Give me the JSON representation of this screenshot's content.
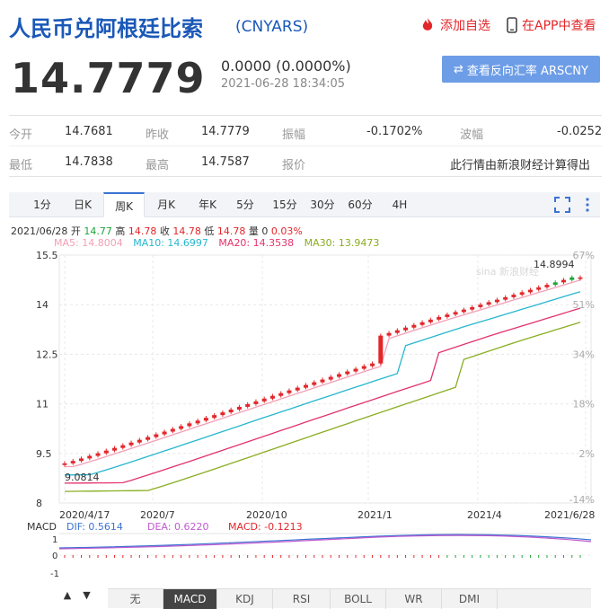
{
  "header": {
    "title": "人民币兑阿根廷比索",
    "code": "(CNYARS)",
    "add_watch": "添加自选",
    "app_view": "在APP中查看"
  },
  "quote": {
    "price": "14.7779",
    "change": "0.0000 (0.0000%)",
    "time": "2021-06-28 18:34:05",
    "reverse_btn": "查看反向汇率 ARSCNY"
  },
  "stats": {
    "row1": [
      [
        "今开",
        "14.7681"
      ],
      [
        "昨收",
        "14.7779"
      ],
      [
        "振幅",
        "-0.1702%"
      ],
      [
        "波幅",
        "-0.0252"
      ]
    ],
    "row2": [
      [
        "最低",
        "14.7838"
      ],
      [
        "最高",
        "14.7587"
      ],
      [
        "报价",
        "此行情由新浪财经计算得出"
      ]
    ]
  },
  "tabs": [
    "1分",
    "日K",
    "周K",
    "月K",
    "年K",
    "5分",
    "15分",
    "30分",
    "60分",
    "4H"
  ],
  "active_tab": "周K",
  "ticker": {
    "date": "2021/06/28",
    "open_l": "开",
    "open": "14.77",
    "high_l": "高",
    "high": "14.78",
    "close_l": "收",
    "close": "14.78",
    "low_l": "低",
    "low": "14.78",
    "vol_l": "量",
    "vol": "0",
    "pct": "0.03%"
  },
  "ma": [
    {
      "label": "MA5: 14.8004",
      "color": "#f2a0b5"
    },
    {
      "label": "MA10: 14.6997",
      "color": "#27b6cf"
    },
    {
      "label": "MA20: 14.3538",
      "color": "#e2336b"
    },
    {
      "label": "MA30: 13.9473",
      "color": "#8aad22"
    }
  ],
  "chart": {
    "y_ticks": [
      "15.5",
      "14",
      "12.5",
      "11",
      "9.5",
      "8"
    ],
    "pct_ticks": [
      "67%",
      "51%",
      "34%",
      "18%",
      "2%",
      "-14%"
    ],
    "x_ticks": [
      "2020/4/17",
      "2020/7",
      "2020/10",
      "2021/1",
      "2021/4",
      "2021/6/28"
    ],
    "max_label": "14.8994",
    "min_label": "9.0814",
    "watermark": "sina 新浪财经",
    "colors": {
      "up": "#e3262a",
      "down": "#1aa53a"
    }
  },
  "macd": {
    "title": "MACD",
    "dif": "DIF: 0.5614",
    "dea": "DEA: 0.6220",
    "macd": "MACD: -0.1213",
    "ticks": [
      "1",
      "0",
      "-1"
    ]
  },
  "bottom_tabs": [
    "无",
    "MACD",
    "KDJ",
    "RSI",
    "BOLL",
    "WR",
    "DMI"
  ],
  "bottom_active": "MACD"
}
